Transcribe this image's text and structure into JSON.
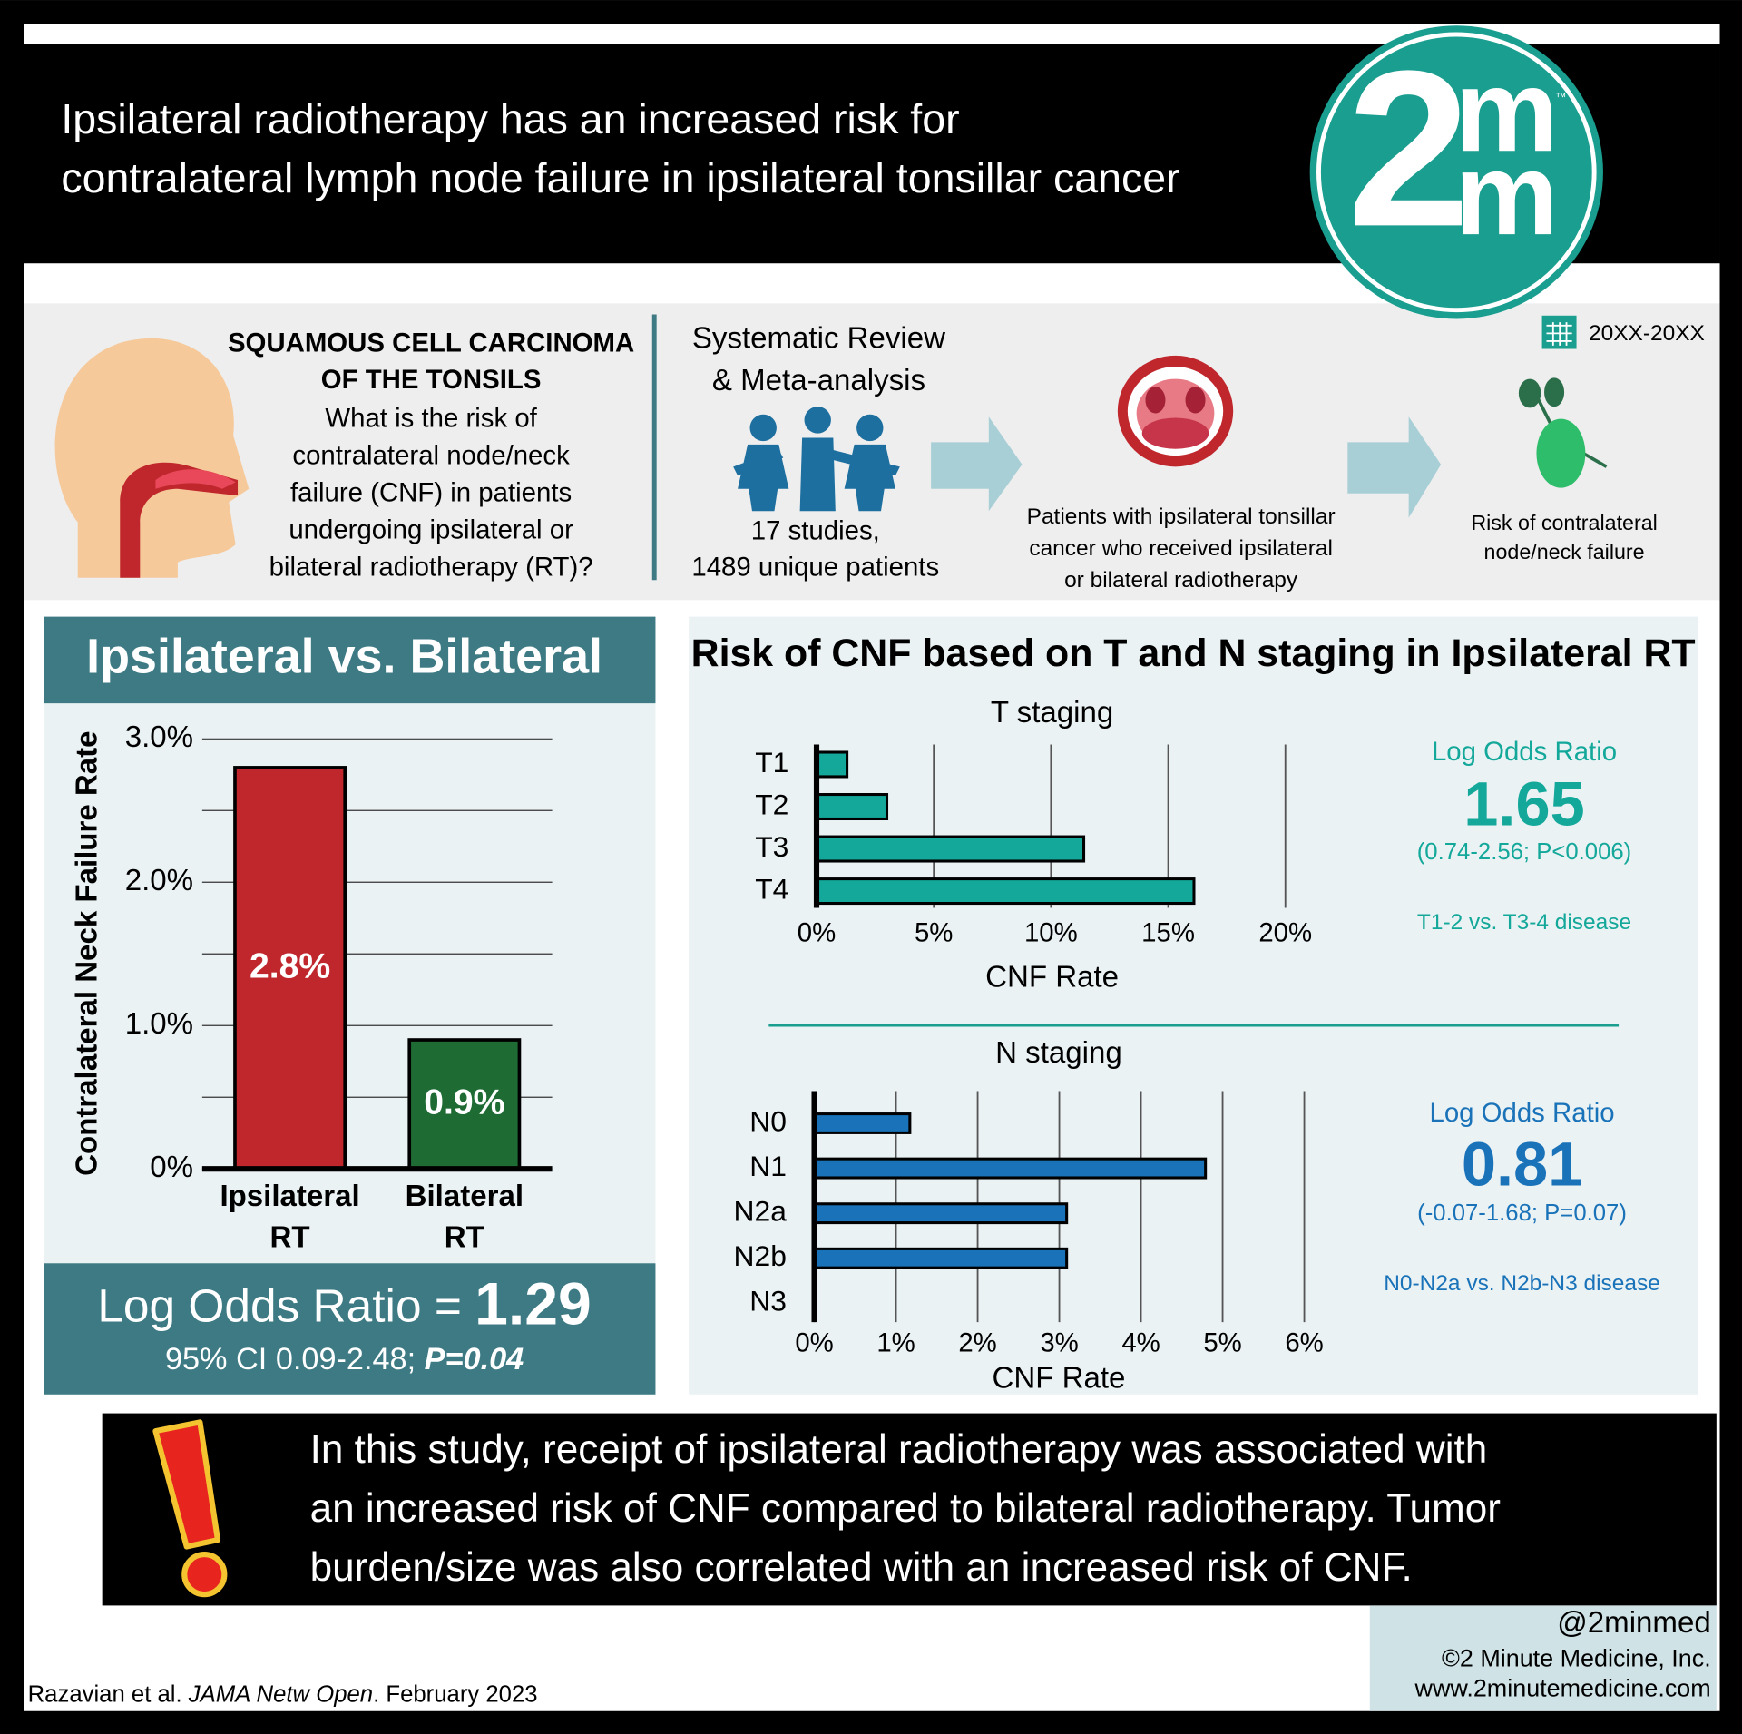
{
  "header": {
    "title": [
      "Ipsilateral radiotherapy has an increased risk for",
      "contralateral lymph node failure in ipsilateral tonsillar cancer"
    ],
    "logo": {
      "digit": "2",
      "top": "m",
      "bottom": "m",
      "mark": "™"
    }
  },
  "intro": {
    "question_heading": [
      "SQUAMOUS CELL CARCINOMA",
      "OF THE TONSILS"
    ],
    "question": [
      "What is the risk of",
      "contralateral node/neck",
      "failure (CNF) in patients",
      "undergoing ipsilateral or",
      "bilateral radiotherapy (RT)?"
    ],
    "method": [
      "Systematic Review",
      "& Meta-analysis"
    ],
    "studies": [
      "17 studies,",
      "1489 unique patients"
    ],
    "patients": [
      "Patients with ipsilateral tonsillar",
      "cancer who received ipsilateral",
      "or bilateral radiotherapy"
    ],
    "date": "20XX-20XX",
    "outcome": [
      "Risk of contralateral",
      "node/neck failure"
    ]
  },
  "staging_panel": {
    "title": "Risk of CNF based on T and N staging in Ipsilateral RT"
  },
  "chart_data": [
    {
      "type": "bar",
      "orientation": "vertical",
      "title": "Ipsilateral vs. Bilateral",
      "ylabel": "Contralateral Neck Failure Rate",
      "categories": [
        "Ipsilateral RT",
        "Bilateral RT"
      ],
      "values": [
        2.8,
        0.9
      ],
      "value_labels": [
        "2.8%",
        "0.9%"
      ],
      "colors": [
        "#c0272d",
        "#1e6b34"
      ],
      "ylim": [
        0,
        3
      ],
      "yticks": [
        {
          "value": 0,
          "label": "0%"
        },
        {
          "value": 1,
          "label": "1.0%"
        },
        {
          "value": 2,
          "label": "2.0%"
        },
        {
          "value": 3,
          "label": "3.0%"
        }
      ],
      "minor_yticks": [
        0.5,
        1.5,
        2.5
      ],
      "grid": true,
      "annotation": {
        "label": "Log Odds Ratio =",
        "value": "1.29",
        "ci": "95% CI 0.09-2.48;",
        "p": "P=0.04"
      }
    },
    {
      "type": "bar",
      "orientation": "horizontal",
      "title": "T staging",
      "xlabel": "CNF Rate",
      "categories": [
        "T1",
        "T2",
        "T3",
        "T4"
      ],
      "values": [
        1.3,
        3.0,
        11.4,
        16.1
      ],
      "color": "#14a89a",
      "xlim": [
        0,
        20
      ],
      "xticks": [
        {
          "value": 0,
          "label": "0%"
        },
        {
          "value": 5,
          "label": "5%"
        },
        {
          "value": 10,
          "label": "10%"
        },
        {
          "value": 15,
          "label": "15%"
        },
        {
          "value": 20,
          "label": "20%"
        }
      ],
      "grid": true,
      "stats": {
        "label": "Log Odds Ratio",
        "value": "1.65",
        "ci": "(0.74-2.56; P<0.006)",
        "comparison": "T1-2 vs. T3-4 disease"
      }
    },
    {
      "type": "bar",
      "orientation": "horizontal",
      "title": "N staging",
      "xlabel": "CNF Rate",
      "categories": [
        "N0",
        "N1",
        "N2a",
        "N2b",
        "N3"
      ],
      "values": [
        1.17,
        4.79,
        3.09,
        3.09,
        0
      ],
      "color": "#1a73b9",
      "xlim": [
        0,
        6
      ],
      "xticks": [
        {
          "value": 0,
          "label": "0%"
        },
        {
          "value": 1,
          "label": "1%"
        },
        {
          "value": 2,
          "label": "2%"
        },
        {
          "value": 3,
          "label": "3%"
        },
        {
          "value": 4,
          "label": "4%"
        },
        {
          "value": 5,
          "label": "5%"
        },
        {
          "value": 6,
          "label": "6%"
        }
      ],
      "grid": true,
      "stats": {
        "label": "Log Odds Ratio",
        "value": "0.81",
        "ci": "(-0.07-1.68; P=0.07)",
        "comparison": "N0-N2a vs. N2b-N3 disease"
      }
    }
  ],
  "conclusion": [
    "In this study, receipt of ipsilateral radiotherapy was associated with",
    "an increased risk of CNF compared to bilateral radiotherapy. Tumor",
    "burden/size was also correlated with an increased risk of CNF."
  ],
  "footer": {
    "handle": "@2minmed",
    "copyright": "©2 Minute Medicine, Inc.",
    "website": "www.2minutemedicine.com",
    "citation": {
      "authors": "Razavian et al. ",
      "journal": "JAMA Netw Open",
      "date": ". February 2023"
    }
  }
}
